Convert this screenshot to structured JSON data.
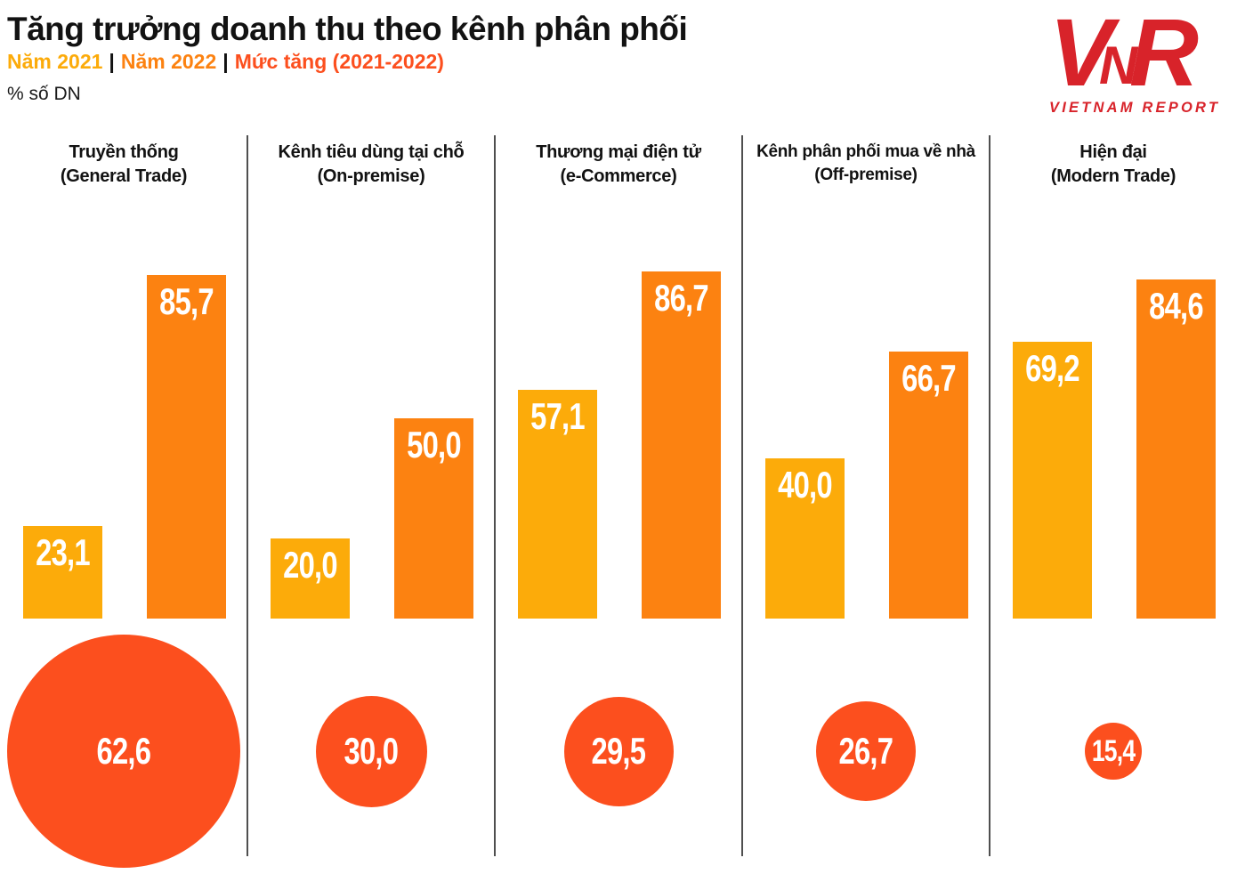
{
  "header": {
    "title": "Tăng trưởng doanh thu theo kênh phân phối",
    "legend": [
      {
        "label": "Năm 2021",
        "color": "#FCAB0A"
      },
      {
        "label": "Năm 2022",
        "color": "#FC8211"
      },
      {
        "label": "Mức tăng (2021-2022)",
        "color": "#FC4F1E"
      }
    ],
    "legend_separator": "|",
    "unit_label": "% số DN"
  },
  "logo": {
    "letters": [
      "V",
      "N",
      "R"
    ],
    "subtext": "VIETNAM REPORT",
    "color": "#D8232A"
  },
  "chart_data": {
    "type": "bar",
    "title": "Tăng trưởng doanh thu theo kênh phân phối",
    "ylabel": "% số DN",
    "gridlines": false,
    "legend_position": "top-left",
    "categories": [
      {
        "vi": "Truyền thống",
        "en": "(General Trade)"
      },
      {
        "vi": "Kênh tiêu dùng tại chỗ",
        "en": "(On-premise)"
      },
      {
        "vi": "Thương mại điện tử",
        "en": "(e-Commerce)"
      },
      {
        "vi": "Kênh phân phối mua về nhà",
        "en": "(Off-premise)"
      },
      {
        "vi": "Hiện đại",
        "en": "(Modern Trade)"
      }
    ],
    "series": [
      {
        "name": "Năm 2021",
        "type": "bar",
        "color": "#FCAB0A",
        "values": [
          23.1,
          20.0,
          57.1,
          40.0,
          69.2
        ]
      },
      {
        "name": "Năm 2022",
        "type": "bar",
        "color": "#FC8211",
        "values": [
          85.7,
          50.0,
          86.7,
          66.7,
          84.6
        ]
      },
      {
        "name": "Mức tăng (2021-2022)",
        "type": "bubble",
        "color": "#FC4F1E",
        "values": [
          62.6,
          30.0,
          29.5,
          26.7,
          15.4
        ]
      }
    ],
    "labels": {
      "y2021": [
        "23,1",
        "20,0",
        "57,1",
        "40,0",
        "69,2"
      ],
      "y2022": [
        "85,7",
        "50,0",
        "86,7",
        "66,7",
        "84,6"
      ],
      "growth": [
        "62,6",
        "30,0",
        "29,5",
        "26,7",
        "15,4"
      ]
    },
    "value_axis_range": [
      0,
      90
    ]
  }
}
